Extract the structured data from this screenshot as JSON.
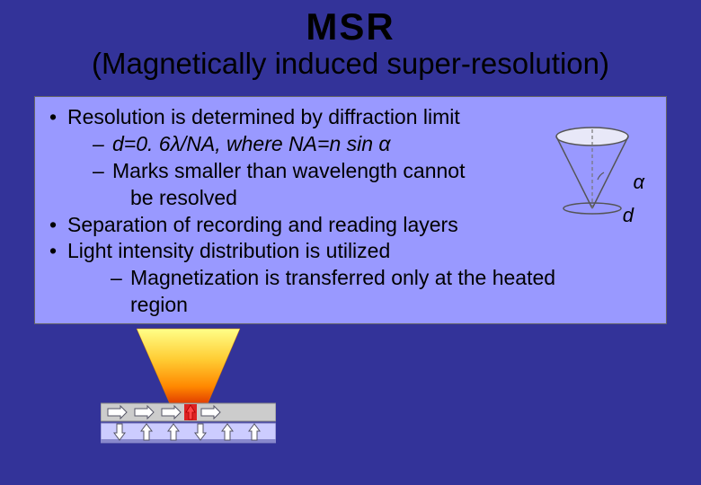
{
  "title": {
    "main": "MSR",
    "sub": "(Magnetically induced super-resolution)"
  },
  "bullets": [
    {
      "level": "lvl1",
      "text": "Resolution is determined by diffraction limit"
    },
    {
      "level": "lvl2",
      "text": "d=0. 6λ/NA, where NA=n sin α",
      "italic": true
    },
    {
      "level": "lvl2",
      "text": "Marks smaller than wavelength cannot"
    },
    {
      "level": "lvl2b",
      "text": "be resolved"
    },
    {
      "level": "lvl1",
      "text": "Separation of recording and reading layers"
    },
    {
      "level": "lvl1",
      "text": "Light intensity distribution is utilized"
    },
    {
      "level": "lvl2c",
      "text": "Magnetization is transferred only at the heated"
    },
    {
      "level": "lvl2b",
      "text": "                                 region"
    }
  ],
  "cone": {
    "alpha_label": "α",
    "d_label": "d",
    "colors": {
      "ellipse_fill": "#e8e8f8",
      "stroke": "#555",
      "dash": "#777"
    }
  },
  "schematic": {
    "beam_gradient": [
      "#ffff66",
      "#ffcc00",
      "#ff9900",
      "#cc0000"
    ],
    "bar_top_color": "#cccccc",
    "bar_bottom_color": "#ccccff",
    "bar_bottom_shadow": "#8888cc",
    "arrow_outline": "#555599",
    "arrow_hot_up": "#cc0000",
    "arrow_up": "#ffffff",
    "arrow_right": "#ffffff",
    "arrow_down": "#ffffff"
  },
  "colors": {
    "slide_bg": "#333399",
    "box_bg": "#9999ff",
    "text": "#000000"
  }
}
